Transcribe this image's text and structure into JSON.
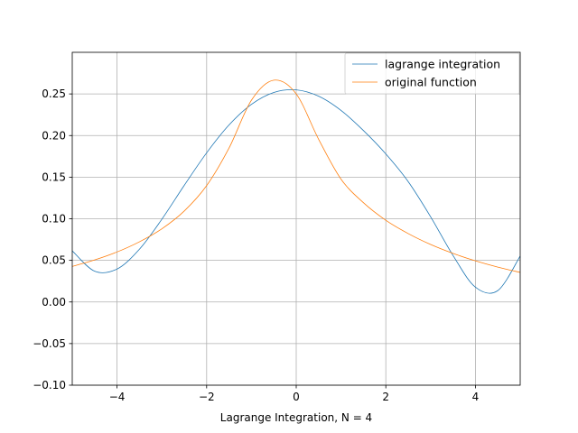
{
  "chart_data": {
    "type": "line",
    "title": "",
    "xlabel": "Lagrange Integration, N = 4",
    "ylabel": "",
    "xlim": [
      -5,
      5
    ],
    "ylim": [
      -0.1,
      0.3
    ],
    "xticks": [
      -4,
      -2,
      0,
      2,
      4
    ],
    "xtick_labels": [
      "−4",
      "−2",
      "0",
      "2",
      "4"
    ],
    "yticks": [
      -0.1,
      -0.05,
      0.0,
      0.05,
      0.1,
      0.15,
      0.2,
      0.25
    ],
    "ytick_labels": [
      "−0.10",
      "−0.05",
      "0.00",
      "0.05",
      "0.10",
      "0.15",
      "0.20",
      "0.25"
    ],
    "grid": true,
    "legend": {
      "placement": "top-right"
    },
    "series": [
      {
        "name": "lagrange integration",
        "color": "#1f77b4",
        "x": [
          -5,
          -4.5,
          -4,
          -3.5,
          -3,
          -2.5,
          -2,
          -1.5,
          -1,
          -0.5,
          0,
          0.5,
          1,
          1.5,
          2,
          2.5,
          3,
          3.5,
          4,
          4.5,
          5
        ],
        "y": [
          0.0615,
          0.037,
          0.0396,
          0.0634,
          0.0994,
          0.1401,
          0.1792,
          0.2127,
          0.2375,
          0.2518,
          0.2549,
          0.2473,
          0.2302,
          0.206,
          0.1779,
          0.1446,
          0.1024,
          0.0559,
          0.0178,
          0.0137,
          0.0552
        ]
      },
      {
        "name": "original function",
        "color": "#ff7f0e",
        "x": [
          -5,
          -4.5,
          -4,
          -3.5,
          -3,
          -2.5,
          -2,
          -1.5,
          -1,
          -0.5,
          0,
          0.5,
          1,
          1.5,
          2,
          2.5,
          3,
          3.5,
          4,
          4.5,
          5
        ],
        "y": [
          0.0427,
          0.0505,
          0.0601,
          0.0723,
          0.0879,
          0.1093,
          0.1398,
          0.185,
          0.2424,
          0.2665,
          0.25,
          0.1955,
          0.1476,
          0.1193,
          0.0982,
          0.0822,
          0.0691,
          0.0584,
          0.0494,
          0.0419,
          0.0355
        ]
      }
    ]
  }
}
